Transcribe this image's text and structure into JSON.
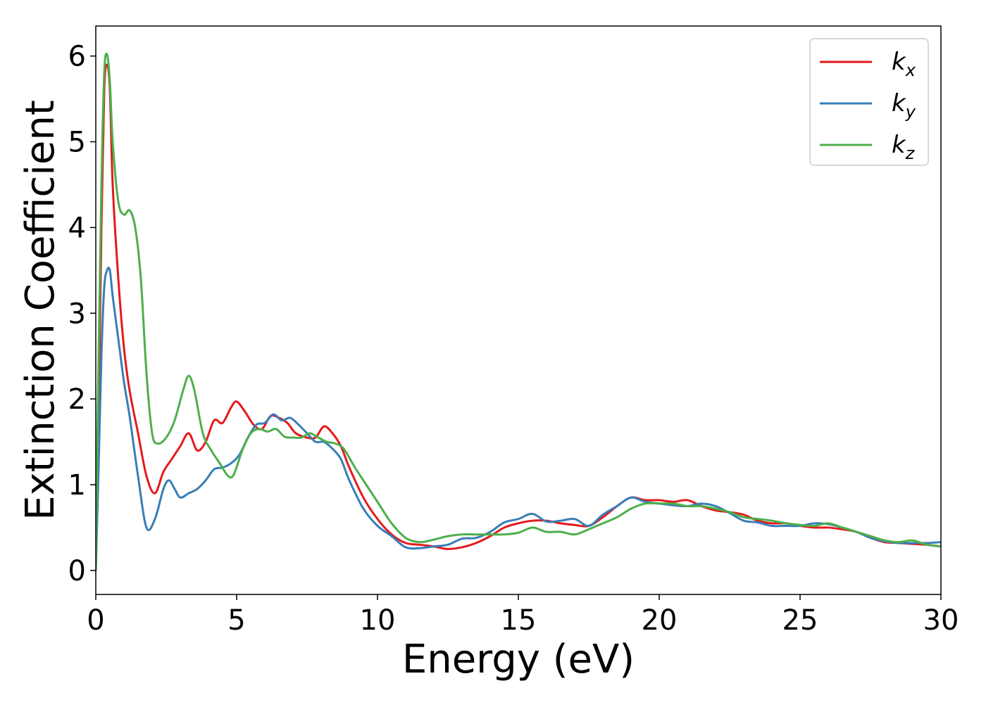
{
  "chart_data": {
    "type": "line",
    "title": "",
    "xlabel": "Energy (eV)",
    "ylabel": "Extinction Coefficient",
    "xlim": [
      0,
      30
    ],
    "ylim": [
      -0.28,
      6.35
    ],
    "xticks": [
      0,
      5,
      10,
      15,
      20,
      25,
      30
    ],
    "xtick_labels": [
      "0",
      "5",
      "10",
      "15",
      "20",
      "25",
      "30"
    ],
    "yticks": [
      0,
      1,
      2,
      3,
      4,
      5,
      6
    ],
    "ytick_labels": [
      "0",
      "1",
      "2",
      "3",
      "4",
      "5",
      "6"
    ],
    "grid": false,
    "legend_position": "top-right",
    "series": [
      {
        "name": "k_x",
        "label_main": "k",
        "label_sub": "x",
        "color": "#e41a1c",
        "x": [
          0,
          0.1,
          0.2,
          0.3,
          0.4,
          0.5,
          0.6,
          0.8,
          1.0,
          1.2,
          1.5,
          1.8,
          2.1,
          2.4,
          2.7,
          3.0,
          3.3,
          3.6,
          3.9,
          4.2,
          4.5,
          4.8,
          5.0,
          5.3,
          5.6,
          5.9,
          6.2,
          6.5,
          6.8,
          7.1,
          7.5,
          7.8,
          8.1,
          8.4,
          8.7,
          9.0,
          9.5,
          10.0,
          10.5,
          11.0,
          11.5,
          12.0,
          12.5,
          13.0,
          13.5,
          14.0,
          14.5,
          15.0,
          15.5,
          16.0,
          16.5,
          17.0,
          17.5,
          18.0,
          18.5,
          19.0,
          19.5,
          20.0,
          20.5,
          21.0,
          21.5,
          22.0,
          22.5,
          23.0,
          23.5,
          24.0,
          24.5,
          25.0,
          25.5,
          26.0,
          26.5,
          27.0,
          27.5,
          28.0,
          28.5,
          29.0,
          29.5,
          30.0
        ],
        "y": [
          0.0,
          1.8,
          4.0,
          5.6,
          5.9,
          5.6,
          4.5,
          3.4,
          2.6,
          2.1,
          1.6,
          1.1,
          0.9,
          1.15,
          1.3,
          1.45,
          1.6,
          1.4,
          1.5,
          1.75,
          1.72,
          1.9,
          1.97,
          1.85,
          1.7,
          1.65,
          1.8,
          1.78,
          1.72,
          1.6,
          1.55,
          1.55,
          1.68,
          1.6,
          1.45,
          1.2,
          0.85,
          0.6,
          0.42,
          0.32,
          0.3,
          0.28,
          0.25,
          0.27,
          0.32,
          0.4,
          0.5,
          0.55,
          0.58,
          0.58,
          0.55,
          0.53,
          0.52,
          0.62,
          0.75,
          0.85,
          0.82,
          0.82,
          0.8,
          0.82,
          0.75,
          0.7,
          0.68,
          0.65,
          0.58,
          0.55,
          0.55,
          0.52,
          0.5,
          0.5,
          0.48,
          0.45,
          0.38,
          0.33,
          0.32,
          0.31,
          0.3,
          0.28
        ]
      },
      {
        "name": "k_y",
        "label_main": "k",
        "label_sub": "y",
        "color": "#377eb8",
        "x": [
          0,
          0.1,
          0.2,
          0.3,
          0.4,
          0.5,
          0.6,
          0.8,
          1.0,
          1.2,
          1.5,
          1.8,
          2.1,
          2.4,
          2.6,
          2.8,
          3.0,
          3.3,
          3.6,
          3.9,
          4.2,
          4.5,
          4.8,
          5.1,
          5.4,
          5.7,
          6.0,
          6.3,
          6.6,
          6.9,
          7.2,
          7.5,
          7.8,
          8.1,
          8.4,
          8.7,
          9.0,
          9.5,
          10.0,
          10.5,
          11.0,
          11.5,
          12.0,
          12.5,
          13.0,
          13.5,
          14.0,
          14.5,
          15.0,
          15.5,
          16.0,
          16.5,
          17.0,
          17.5,
          18.0,
          18.5,
          19.0,
          19.5,
          20.0,
          20.5,
          21.0,
          21.5,
          22.0,
          22.5,
          23.0,
          23.5,
          24.0,
          24.5,
          25.0,
          25.5,
          26.0,
          26.5,
          27.0,
          27.5,
          28.0,
          28.5,
          29.0,
          29.5,
          30.0
        ],
        "y": [
          0.0,
          1.2,
          2.5,
          3.3,
          3.5,
          3.5,
          3.2,
          2.7,
          2.2,
          1.8,
          1.1,
          0.5,
          0.6,
          0.95,
          1.05,
          0.95,
          0.85,
          0.9,
          0.95,
          1.05,
          1.18,
          1.2,
          1.25,
          1.35,
          1.55,
          1.7,
          1.72,
          1.82,
          1.75,
          1.78,
          1.7,
          1.6,
          1.5,
          1.5,
          1.42,
          1.3,
          1.05,
          0.72,
          0.52,
          0.4,
          0.27,
          0.26,
          0.28,
          0.3,
          0.37,
          0.38,
          0.45,
          0.56,
          0.6,
          0.66,
          0.57,
          0.58,
          0.6,
          0.52,
          0.65,
          0.75,
          0.85,
          0.8,
          0.78,
          0.76,
          0.75,
          0.78,
          0.75,
          0.67,
          0.58,
          0.56,
          0.52,
          0.52,
          0.52,
          0.55,
          0.54,
          0.5,
          0.45,
          0.38,
          0.34,
          0.32,
          0.32,
          0.32,
          0.33
        ]
      },
      {
        "name": "k_z",
        "label_main": "k",
        "label_sub": "z",
        "color": "#4daf4a",
        "x": [
          0,
          0.1,
          0.2,
          0.3,
          0.4,
          0.5,
          0.6,
          0.8,
          1.0,
          1.2,
          1.4,
          1.6,
          1.8,
          2.0,
          2.2,
          2.5,
          2.8,
          3.1,
          3.3,
          3.5,
          3.8,
          4.1,
          4.4,
          4.7,
          4.9,
          5.2,
          5.5,
          5.8,
          6.1,
          6.4,
          6.7,
          7.0,
          7.3,
          7.6,
          7.9,
          8.2,
          8.5,
          8.8,
          9.2,
          9.6,
          10.0,
          10.5,
          11.0,
          11.5,
          12.0,
          12.5,
          13.0,
          13.5,
          14.0,
          14.5,
          15.0,
          15.5,
          16.0,
          16.5,
          17.0,
          17.5,
          18.0,
          18.5,
          19.0,
          19.5,
          20.0,
          20.5,
          21.0,
          21.5,
          22.0,
          22.5,
          23.0,
          23.5,
          24.0,
          24.5,
          25.0,
          25.5,
          26.0,
          26.5,
          27.0,
          27.5,
          28.0,
          28.5,
          29.0,
          29.5,
          30.0
        ],
        "y": [
          0.0,
          2.5,
          4.5,
          5.8,
          6.02,
          5.7,
          5.0,
          4.3,
          4.15,
          4.2,
          4.0,
          3.4,
          2.3,
          1.6,
          1.48,
          1.55,
          1.75,
          2.1,
          2.27,
          2.1,
          1.6,
          1.4,
          1.25,
          1.1,
          1.12,
          1.4,
          1.6,
          1.65,
          1.62,
          1.65,
          1.56,
          1.55,
          1.55,
          1.6,
          1.55,
          1.5,
          1.48,
          1.42,
          1.2,
          1.0,
          0.8,
          0.55,
          0.38,
          0.33,
          0.36,
          0.4,
          0.42,
          0.42,
          0.42,
          0.42,
          0.44,
          0.5,
          0.45,
          0.45,
          0.42,
          0.48,
          0.55,
          0.62,
          0.72,
          0.78,
          0.78,
          0.78,
          0.75,
          0.75,
          0.72,
          0.68,
          0.62,
          0.6,
          0.58,
          0.55,
          0.53,
          0.52,
          0.55,
          0.5,
          0.45,
          0.4,
          0.35,
          0.33,
          0.35,
          0.3,
          0.28
        ]
      }
    ]
  }
}
